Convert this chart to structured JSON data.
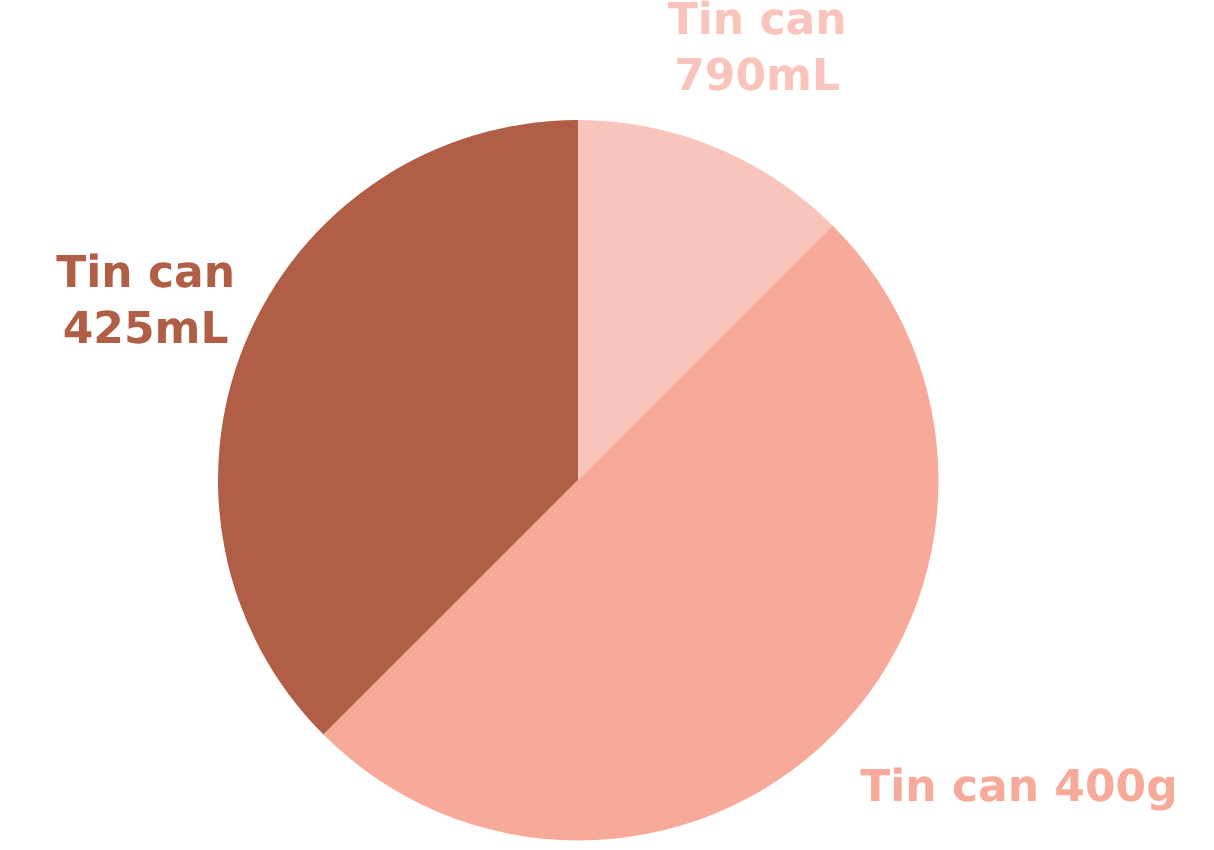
{
  "chart_data": {
    "type": "pie",
    "categories": [
      "Tin can 790mL",
      "Tin can 400g",
      "Tin can 425mL"
    ],
    "values": [
      12.5,
      50,
      37.5
    ],
    "colors": [
      "#f9c4bb",
      "#f7a99a",
      "#b05e45"
    ]
  }
}
